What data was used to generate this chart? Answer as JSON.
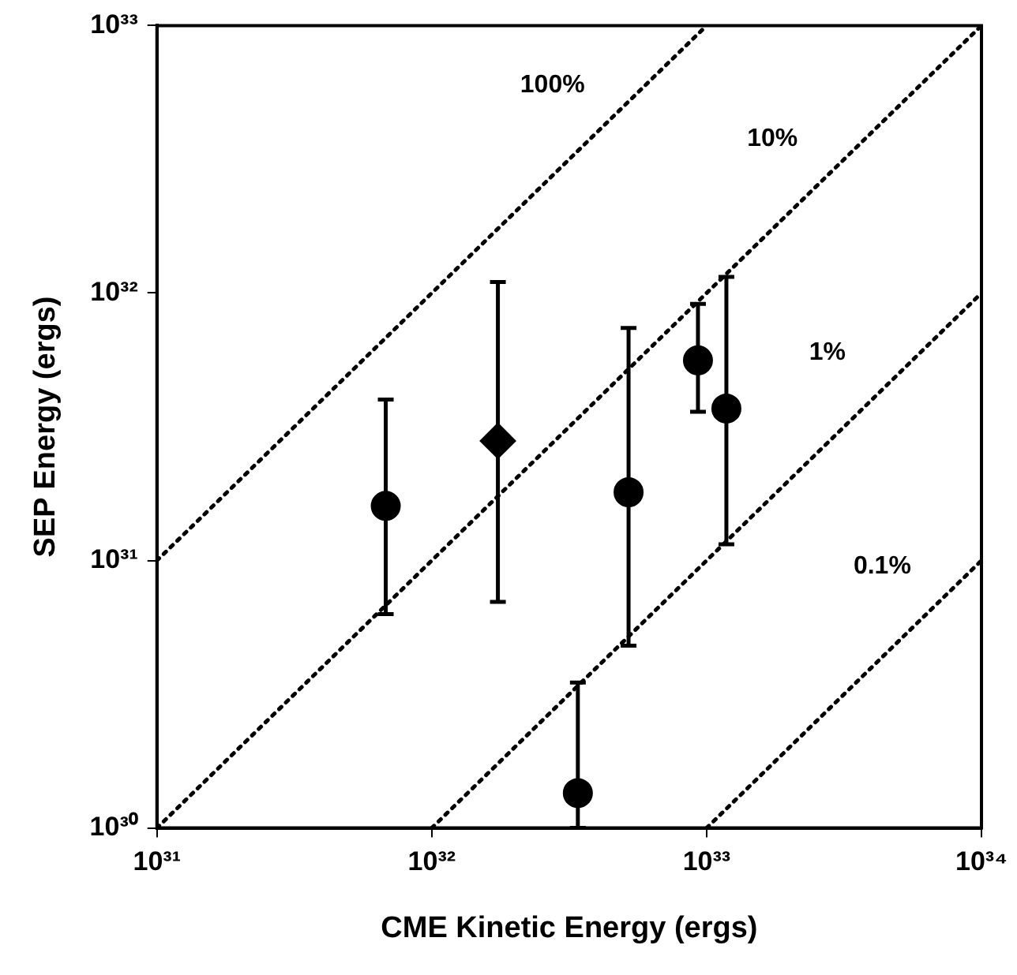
{
  "chart_data": {
    "type": "scatter",
    "xlabel": "CME Kinetic Energy (ergs)",
    "ylabel": "SEP Energy (ergs)",
    "log": "xy",
    "grid": false,
    "legend": false,
    "xlim": [
      1e+31,
      1e+34
    ],
    "ylim": [
      1e+30,
      1e+33
    ],
    "xticks": [
      {
        "value": 1e+31,
        "label": "10³¹"
      },
      {
        "value": 1e+32,
        "label": "10³²"
      },
      {
        "value": 1e+33,
        "label": "10³³"
      },
      {
        "value": 1e+34,
        "label": "10³⁴"
      }
    ],
    "yticks": [
      {
        "value": 1e+30,
        "label": "10³⁰"
      },
      {
        "value": 1e+31,
        "label": "10³¹"
      },
      {
        "value": 1e+32,
        "label": "10³²"
      },
      {
        "value": 1e+33,
        "label": "10³³"
      }
    ],
    "series": [
      {
        "type": "line",
        "name": "100%",
        "color": "#000000",
        "line_style": "dotted",
        "x": [
          1e+31,
          1e+33
        ],
        "values": [
          1e+31,
          1e+33
        ]
      },
      {
        "type": "line",
        "name": "10%",
        "color": "#000000",
        "line_style": "dotted",
        "x": [
          1e+31,
          1e+34
        ],
        "values": [
          1e+30,
          1e+33
        ]
      },
      {
        "type": "line",
        "name": "1%",
        "color": "#000000",
        "line_style": "dotted",
        "x": [
          1e+32,
          1e+34
        ],
        "values": [
          1e+30,
          1e+32
        ]
      },
      {
        "type": "line",
        "name": "0.1%",
        "color": "#000000",
        "line_style": "dotted",
        "x": [
          1e+33,
          1e+34
        ],
        "values": [
          1e+30,
          1e+31
        ]
      },
      {
        "type": "scatter",
        "marker": "circle",
        "color": "#000000",
        "x": [
          6.8e+31,
          3.4e+32,
          5.2e+32,
          9.3e+32,
          1.18e+33
        ],
        "values": [
          1.6e+31,
          1.35e+30,
          1.8e+31,
          5.6e+31,
          3.7e+31
        ],
        "errors": [
          [
            6.3e+30,
            4e+31
          ],
          [
            1e+30,
            3.5e+30
          ],
          [
            4.8e+30,
            7.4e+31
          ],
          [
            3.6e+31,
            9.1e+31
          ],
          [
            1.15e+31,
            1.15e+32
          ]
        ]
      },
      {
        "type": "scatter",
        "marker": "diamond",
        "color": "#000000",
        "x": [
          1.74e+32
        ],
        "values": [
          2.8e+31
        ],
        "errors": [
          [
            7e+30,
            1.1e+32
          ]
        ]
      }
    ]
  }
}
